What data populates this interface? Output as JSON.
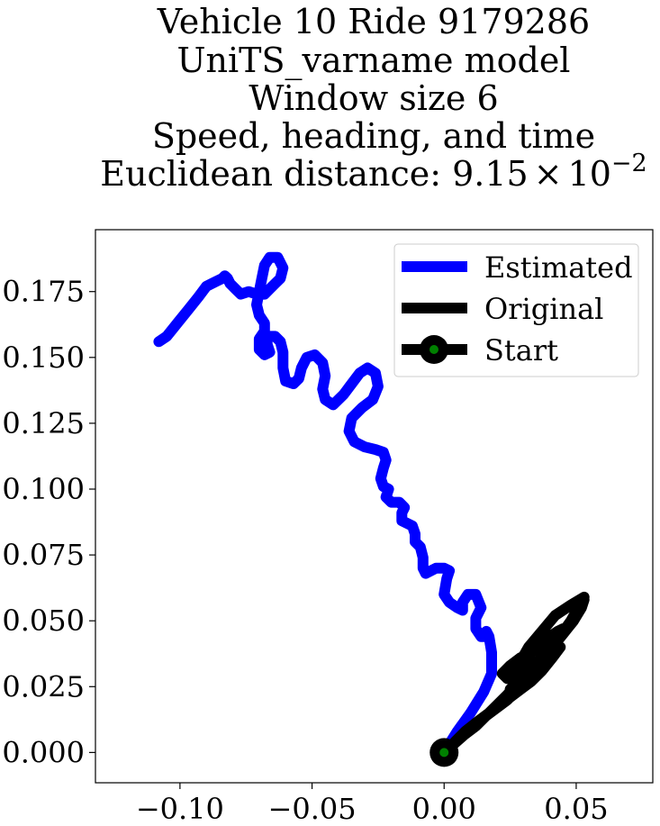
{
  "chart_data": {
    "type": "line",
    "title_lines": [
      "Vehicle 10 Ride 9179286",
      "UniTS_varname model",
      "Window size 6",
      "Speed, heading, and time"
    ],
    "distance_label": "Euclidean distance: ",
    "distance_mantissa": "9.15",
    "distance_times": "×",
    "distance_base": "10",
    "distance_exponent": "−2",
    "xlim": [
      -0.132,
      0.079
    ],
    "ylim": [
      -0.0115,
      0.1985
    ],
    "xticks": [
      -0.1,
      -0.05,
      0.0,
      0.05
    ],
    "xtick_labels": [
      "−0.10",
      "−0.05",
      "0.00",
      "0.05"
    ],
    "yticks": [
      0.0,
      0.025,
      0.05,
      0.075,
      0.1,
      0.125,
      0.15,
      0.175
    ],
    "ytick_labels": [
      "0.000",
      "0.025",
      "0.050",
      "0.075",
      "0.100",
      "0.125",
      "0.150",
      "0.175"
    ],
    "grid": false,
    "legend_position": "upper right",
    "legend": [
      "Estimated",
      "Original",
      "Start"
    ],
    "series": [
      {
        "name": "Estimated",
        "color": "#0000ff",
        "points": [
          [
            0.0,
            0.0
          ],
          [
            0.005,
            0.008
          ],
          [
            0.01,
            0.015
          ],
          [
            0.015,
            0.023
          ],
          [
            0.018,
            0.03
          ],
          [
            0.018,
            0.038
          ],
          [
            0.017,
            0.044
          ],
          [
            0.016,
            0.046
          ],
          [
            0.016,
            0.044
          ],
          [
            0.014,
            0.044
          ],
          [
            0.012,
            0.047
          ],
          [
            0.012,
            0.051
          ],
          [
            0.014,
            0.055
          ],
          [
            0.012,
            0.06
          ],
          [
            0.009,
            0.06
          ],
          [
            0.007,
            0.057
          ],
          [
            0.007,
            0.054
          ],
          [
            0.005,
            0.055
          ],
          [
            0.002,
            0.057
          ],
          [
            0.0,
            0.06
          ],
          [
            0.001,
            0.066
          ],
          [
            0.002,
            0.069
          ],
          [
            0.0,
            0.07
          ],
          [
            -0.003,
            0.07
          ],
          [
            -0.007,
            0.068
          ],
          [
            -0.008,
            0.07
          ],
          [
            -0.008,
            0.074
          ],
          [
            -0.009,
            0.078
          ],
          [
            -0.011,
            0.08
          ],
          [
            -0.011,
            0.083
          ],
          [
            -0.012,
            0.086
          ],
          [
            -0.014,
            0.087
          ],
          [
            -0.016,
            0.088
          ],
          [
            -0.016,
            0.091
          ],
          [
            -0.015,
            0.093
          ],
          [
            -0.017,
            0.095
          ],
          [
            -0.02,
            0.095
          ],
          [
            -0.022,
            0.097
          ],
          [
            -0.021,
            0.1
          ],
          [
            -0.023,
            0.101
          ],
          [
            -0.024,
            0.104
          ],
          [
            -0.023,
            0.108
          ],
          [
            -0.022,
            0.111
          ],
          [
            -0.023,
            0.114
          ],
          [
            -0.026,
            0.115
          ],
          [
            -0.03,
            0.116
          ],
          [
            -0.034,
            0.118
          ],
          [
            -0.036,
            0.122
          ],
          [
            -0.035,
            0.127
          ],
          [
            -0.031,
            0.131
          ],
          [
            -0.027,
            0.134
          ],
          [
            -0.025,
            0.139
          ],
          [
            -0.026,
            0.144
          ],
          [
            -0.029,
            0.146
          ],
          [
            -0.032,
            0.144
          ],
          [
            -0.035,
            0.14
          ],
          [
            -0.038,
            0.136
          ],
          [
            -0.042,
            0.132
          ],
          [
            -0.045,
            0.134
          ],
          [
            -0.046,
            0.138
          ],
          [
            -0.045,
            0.143
          ],
          [
            -0.046,
            0.148
          ],
          [
            -0.049,
            0.151
          ],
          [
            -0.052,
            0.15
          ],
          [
            -0.054,
            0.146
          ],
          [
            -0.055,
            0.142
          ],
          [
            -0.057,
            0.14
          ],
          [
            -0.06,
            0.141
          ],
          [
            -0.061,
            0.146
          ],
          [
            -0.061,
            0.152
          ],
          [
            -0.062,
            0.156
          ],
          [
            -0.064,
            0.158
          ],
          [
            -0.067,
            0.158
          ],
          [
            -0.067,
            0.155
          ],
          [
            -0.066,
            0.152
          ],
          [
            -0.068,
            0.151
          ],
          [
            -0.07,
            0.153
          ],
          [
            -0.07,
            0.157
          ],
          [
            -0.068,
            0.16
          ],
          [
            -0.068,
            0.163
          ],
          [
            -0.07,
            0.166
          ],
          [
            -0.071,
            0.17
          ],
          [
            -0.07,
            0.175
          ],
          [
            -0.069,
            0.18
          ],
          [
            -0.068,
            0.185
          ],
          [
            -0.066,
            0.188
          ],
          [
            -0.063,
            0.188
          ],
          [
            -0.061,
            0.184
          ],
          [
            -0.062,
            0.18
          ],
          [
            -0.064,
            0.178
          ],
          [
            -0.066,
            0.176
          ],
          [
            -0.068,
            0.174
          ],
          [
            -0.071,
            0.174
          ],
          [
            -0.074,
            0.175
          ],
          [
            -0.077,
            0.174
          ],
          [
            -0.079,
            0.176
          ],
          [
            -0.081,
            0.178
          ],
          [
            -0.082,
            0.18
          ],
          [
            -0.083,
            0.181
          ],
          [
            -0.084,
            0.18
          ],
          [
            -0.086,
            0.179
          ],
          [
            -0.088,
            0.178
          ],
          [
            -0.09,
            0.177
          ],
          [
            -0.093,
            0.173
          ],
          [
            -0.097,
            0.168
          ],
          [
            -0.101,
            0.163
          ],
          [
            -0.105,
            0.158
          ],
          [
            -0.108,
            0.156
          ]
        ]
      },
      {
        "name": "Original",
        "color": "#000000",
        "points": [
          [
            0.0,
            0.0
          ],
          [
            0.008,
            0.007
          ],
          [
            0.016,
            0.014
          ],
          [
            0.024,
            0.022
          ],
          [
            0.031,
            0.03
          ],
          [
            0.038,
            0.037
          ],
          [
            0.043,
            0.043
          ],
          [
            0.048,
            0.05
          ],
          [
            0.052,
            0.057
          ],
          [
            0.053,
            0.059
          ],
          [
            0.048,
            0.056
          ],
          [
            0.042,
            0.052
          ],
          [
            0.037,
            0.046
          ],
          [
            0.032,
            0.04
          ],
          [
            0.028,
            0.033
          ],
          [
            0.024,
            0.028
          ],
          [
            0.022,
            0.03
          ],
          [
            0.025,
            0.033
          ],
          [
            0.029,
            0.036
          ],
          [
            0.033,
            0.038
          ],
          [
            0.037,
            0.041
          ],
          [
            0.04,
            0.044
          ],
          [
            0.043,
            0.046
          ],
          [
            0.045,
            0.047
          ],
          [
            0.042,
            0.043
          ],
          [
            0.039,
            0.039
          ],
          [
            0.036,
            0.035
          ],
          [
            0.033,
            0.031
          ],
          [
            0.03,
            0.027
          ],
          [
            0.027,
            0.023
          ],
          [
            0.024,
            0.02
          ],
          [
            0.02,
            0.017
          ],
          [
            0.016,
            0.014
          ],
          [
            0.012,
            0.01
          ],
          [
            0.008,
            0.007
          ],
          [
            0.004,
            0.004
          ],
          [
            0.008,
            0.008
          ],
          [
            0.013,
            0.012
          ],
          [
            0.017,
            0.015
          ],
          [
            0.021,
            0.018
          ],
          [
            0.025,
            0.021
          ],
          [
            0.029,
            0.024
          ],
          [
            0.033,
            0.027
          ],
          [
            0.037,
            0.031
          ],
          [
            0.041,
            0.036
          ],
          [
            0.044,
            0.04
          ],
          [
            0.04,
            0.038
          ],
          [
            0.036,
            0.035
          ],
          [
            0.032,
            0.033
          ],
          [
            0.028,
            0.031
          ],
          [
            0.025,
            0.028
          ],
          [
            0.028,
            0.025
          ],
          [
            0.031,
            0.028
          ],
          [
            0.034,
            0.031
          ],
          [
            0.037,
            0.034
          ],
          [
            0.04,
            0.037
          ],
          [
            0.036,
            0.033
          ],
          [
            0.032,
            0.029
          ],
          [
            0.028,
            0.026
          ],
          [
            0.025,
            0.024
          ],
          [
            0.029,
            0.027
          ],
          [
            0.033,
            0.032
          ],
          [
            0.037,
            0.036
          ],
          [
            0.041,
            0.04
          ],
          [
            0.045,
            0.045
          ],
          [
            0.049,
            0.05
          ],
          [
            0.052,
            0.055
          ],
          [
            0.053,
            0.058
          ]
        ]
      }
    ],
    "start_point": [
      0.0,
      0.0
    ],
    "start_marker_color": "#008000"
  }
}
